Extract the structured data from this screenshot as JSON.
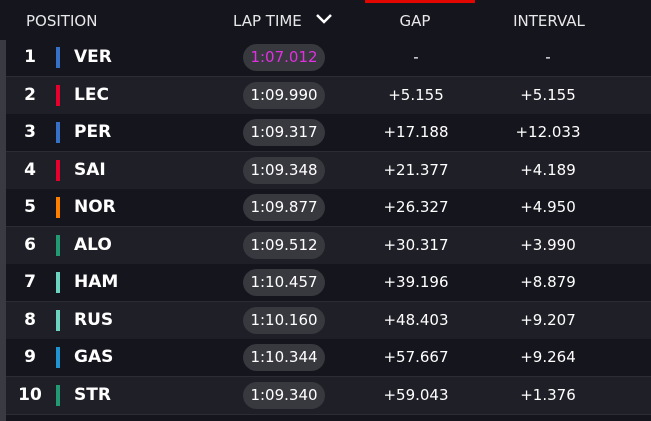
{
  "header": {
    "position": "POSITION",
    "lap_time": "LAP TIME",
    "gap": "GAP",
    "interval": "INTERVAL"
  },
  "table": {
    "rows": [
      {
        "position": "1",
        "driver": "VER",
        "team_color": "#3671c6",
        "lap_time": "1:07.012",
        "lap_time_color": "#e030e0",
        "gap": "-",
        "interval": "-"
      },
      {
        "position": "2",
        "driver": "LEC",
        "team_color": "#e8002d",
        "lap_time": "1:09.990",
        "lap_time_color": "#ffffff",
        "gap": "+5.155",
        "interval": "+5.155"
      },
      {
        "position": "3",
        "driver": "PER",
        "team_color": "#3671c6",
        "lap_time": "1:09.317",
        "lap_time_color": "#ffffff",
        "gap": "+17.188",
        "interval": "+12.033"
      },
      {
        "position": "4",
        "driver": "SAI",
        "team_color": "#e8002d",
        "lap_time": "1:09.348",
        "lap_time_color": "#ffffff",
        "gap": "+21.377",
        "interval": "+4.189"
      },
      {
        "position": "5",
        "driver": "NOR",
        "team_color": "#ff8000",
        "lap_time": "1:09.877",
        "lap_time_color": "#ffffff",
        "gap": "+26.327",
        "interval": "+4.950"
      },
      {
        "position": "6",
        "driver": "ALO",
        "team_color": "#229971",
        "lap_time": "1:09.512",
        "lap_time_color": "#ffffff",
        "gap": "+30.317",
        "interval": "+3.990"
      },
      {
        "position": "7",
        "driver": "HAM",
        "team_color": "#6cd3bf",
        "lap_time": "1:10.457",
        "lap_time_color": "#ffffff",
        "gap": "+39.196",
        "interval": "+8.879"
      },
      {
        "position": "8",
        "driver": "RUS",
        "team_color": "#6cd3bf",
        "lap_time": "1:10.160",
        "lap_time_color": "#ffffff",
        "gap": "+48.403",
        "interval": "+9.207"
      },
      {
        "position": "9",
        "driver": "GAS",
        "team_color": "#2293d1",
        "lap_time": "1:10.344",
        "lap_time_color": "#ffffff",
        "gap": "+57.667",
        "interval": "+9.264"
      },
      {
        "position": "10",
        "driver": "STR",
        "team_color": "#229971",
        "lap_time": "1:09.340",
        "lap_time_color": "#ffffff",
        "gap": "+59.043",
        "interval": "+1.376"
      }
    ]
  }
}
